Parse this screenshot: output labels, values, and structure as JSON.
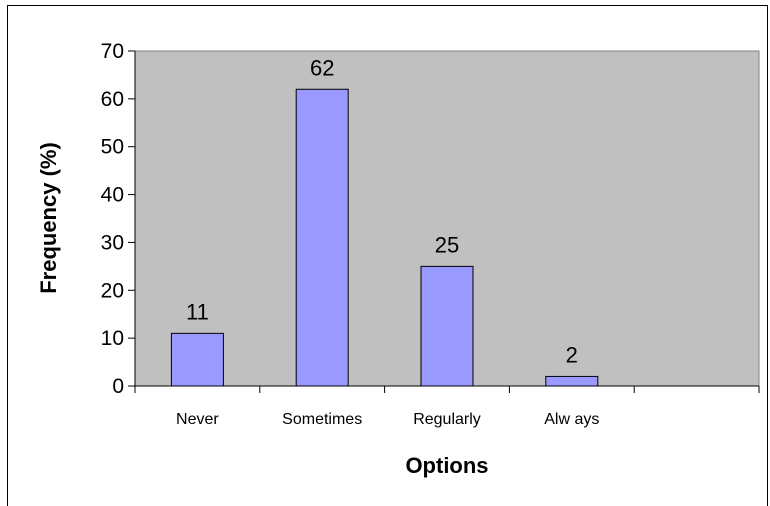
{
  "chart_data": {
    "type": "bar",
    "title": "",
    "xlabel": "Options",
    "ylabel": "Frequency (%)",
    "categories": [
      "Never",
      "Sometimes",
      "Regularly",
      "Alw ays"
    ],
    "values": [
      11,
      62,
      25,
      2
    ],
    "data_labels": [
      "11",
      "62",
      "25",
      "2"
    ],
    "y_ticks": [
      0,
      10,
      20,
      30,
      40,
      50,
      60,
      70
    ],
    "ylim": [
      0,
      70
    ],
    "grid": false,
    "legend": "none",
    "colors": {
      "bar_fill": "#9999ff",
      "bar_stroke": "#000000",
      "plot_background": "#c0c0c0",
      "page_background": "#ffffff"
    }
  }
}
